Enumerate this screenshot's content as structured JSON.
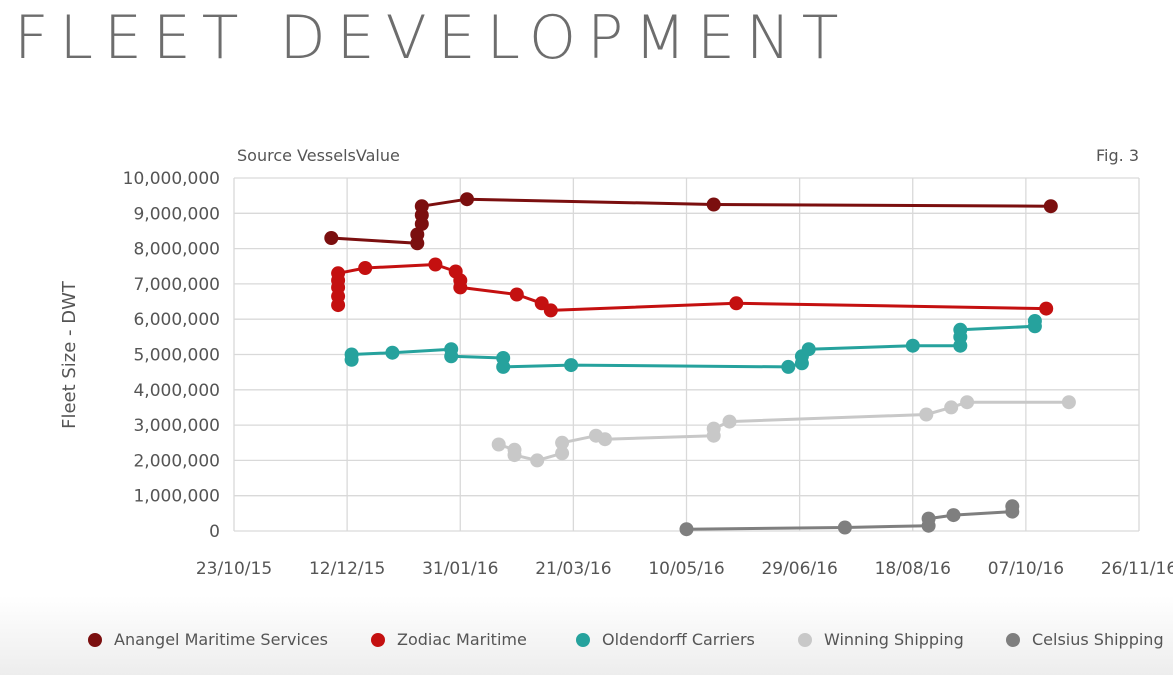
{
  "page": {
    "title": "FLEET DEVELOPMENT"
  },
  "chart_data": {
    "type": "line",
    "source_note": "Source VesselsValue",
    "fig_label": "Fig. 3",
    "ylabel": "Fleet Size - DWT",
    "xlabel": "",
    "ylim": [
      0,
      10000000
    ],
    "y_ticks": [
      0,
      1000000,
      2000000,
      3000000,
      4000000,
      5000000,
      6000000,
      7000000,
      8000000,
      9000000,
      10000000
    ],
    "y_tick_labels": [
      "0",
      "1,000,000",
      "2,000,000",
      "3,000,000",
      "4,000,000",
      "5,000,000",
      "6,000,000",
      "7,000,000",
      "8,000,000",
      "9,000,000",
      "10,000,000"
    ],
    "xlim": [
      "2015-10-23",
      "2016-11-26"
    ],
    "x_ticks": [
      "2015-10-23",
      "2015-12-12",
      "2016-01-31",
      "2016-03-21",
      "2016-05-10",
      "2016-06-29",
      "2016-08-18",
      "2016-10-07",
      "2016-11-26"
    ],
    "x_tick_labels": [
      "23/10/15",
      "12/12/15",
      "31/01/16",
      "21/03/16",
      "10/05/16",
      "29/06/16",
      "18/08/16",
      "07/10/16",
      "26/11/16"
    ],
    "grid": true,
    "legend_position": "bottom",
    "series": [
      {
        "name": "Anangel Maritime Services",
        "color": "#7b0f0f",
        "points": [
          [
            "2015-12-05",
            8300000
          ],
          [
            "2016-01-12",
            8150000
          ],
          [
            "2016-01-12",
            8400000
          ],
          [
            "2016-01-14",
            8700000
          ],
          [
            "2016-01-14",
            8950000
          ],
          [
            "2016-01-14",
            9200000
          ],
          [
            "2016-02-03",
            9400000
          ],
          [
            "2016-05-22",
            9250000
          ],
          [
            "2016-10-18",
            9200000
          ]
        ]
      },
      {
        "name": "Zodiac Maritime",
        "color": "#c41010",
        "points": [
          [
            "2015-12-08",
            6400000
          ],
          [
            "2015-12-08",
            6650000
          ],
          [
            "2015-12-08",
            6900000
          ],
          [
            "2015-12-08",
            7100000
          ],
          [
            "2015-12-08",
            7300000
          ],
          [
            "2015-12-20",
            7450000
          ],
          [
            "2016-01-20",
            7550000
          ],
          [
            "2016-01-29",
            7350000
          ],
          [
            "2016-01-31",
            7100000
          ],
          [
            "2016-01-31",
            6900000
          ],
          [
            "2016-02-25",
            6700000
          ],
          [
            "2016-03-07",
            6450000
          ],
          [
            "2016-03-11",
            6250000
          ],
          [
            "2016-06-01",
            6450000
          ],
          [
            "2016-10-16",
            6300000
          ]
        ]
      },
      {
        "name": "Oldendorff Carriers",
        "color": "#26a29d",
        "points": [
          [
            "2015-12-14",
            4850000
          ],
          [
            "2015-12-14",
            5000000
          ],
          [
            "2016-01-01",
            5050000
          ],
          [
            "2016-01-27",
            5150000
          ],
          [
            "2016-01-27",
            4950000
          ],
          [
            "2016-02-19",
            4900000
          ],
          [
            "2016-02-19",
            4650000
          ],
          [
            "2016-03-20",
            4700000
          ],
          [
            "2016-06-24",
            4650000
          ],
          [
            "2016-06-30",
            4750000
          ],
          [
            "2016-06-30",
            4950000
          ],
          [
            "2016-07-03",
            5150000
          ],
          [
            "2016-08-18",
            5250000
          ],
          [
            "2016-09-08",
            5250000
          ],
          [
            "2016-09-08",
            5500000
          ],
          [
            "2016-09-08",
            5700000
          ],
          [
            "2016-10-11",
            5800000
          ],
          [
            "2016-10-11",
            5950000
          ]
        ]
      },
      {
        "name": "Winning Shipping",
        "color": "#c8c8c8",
        "points": [
          [
            "2016-02-17",
            2450000
          ],
          [
            "2016-02-24",
            2300000
          ],
          [
            "2016-02-24",
            2150000
          ],
          [
            "2016-03-05",
            2000000
          ],
          [
            "2016-03-16",
            2200000
          ],
          [
            "2016-03-16",
            2500000
          ],
          [
            "2016-03-31",
            2700000
          ],
          [
            "2016-04-04",
            2600000
          ],
          [
            "2016-05-22",
            2700000
          ],
          [
            "2016-05-22",
            2900000
          ],
          [
            "2016-05-29",
            3100000
          ],
          [
            "2016-08-24",
            3300000
          ],
          [
            "2016-09-04",
            3500000
          ],
          [
            "2016-09-11",
            3650000
          ],
          [
            "2016-10-26",
            3650000
          ]
        ]
      },
      {
        "name": "Celsius Shipping",
        "color": "#7f7f7f",
        "points": [
          [
            "2016-05-10",
            50000
          ],
          [
            "2016-07-19",
            100000
          ],
          [
            "2016-08-25",
            150000
          ],
          [
            "2016-08-25",
            350000
          ],
          [
            "2016-09-05",
            450000
          ],
          [
            "2016-10-01",
            550000
          ],
          [
            "2016-10-01",
            700000
          ]
        ]
      }
    ]
  }
}
